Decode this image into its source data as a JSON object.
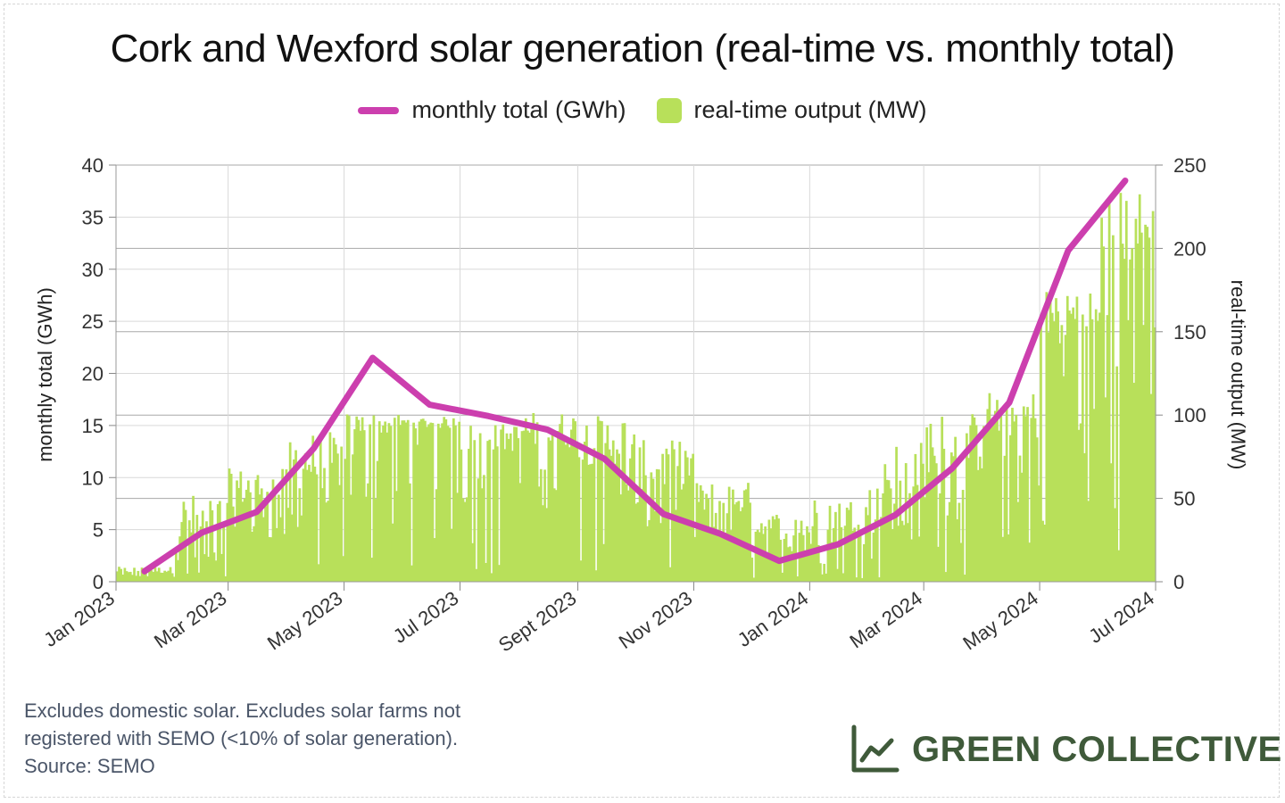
{
  "chart_data": {
    "type": "bar",
    "title": "Cork and Wexford solar generation (real-time vs. monthly total)",
    "ylabel_left": "monthly total (GWh)",
    "ylabel_right": "real-time output (MW)",
    "ylim_left": [
      0,
      40
    ],
    "ylim_right": [
      0,
      250
    ],
    "yticks_left": [
      "0",
      "5",
      "10",
      "15",
      "20",
      "25",
      "30",
      "35",
      "40"
    ],
    "yticks_right": [
      "0",
      "50",
      "100",
      "150",
      "200",
      "250"
    ],
    "xlim": [
      "2023-01-01",
      "2024-07-01"
    ],
    "xticks": [
      {
        "date": "2023-01-01",
        "label": "Jan 2023"
      },
      {
        "date": "2023-03-01",
        "label": "Mar 2023"
      },
      {
        "date": "2023-05-01",
        "label": "May 2023"
      },
      {
        "date": "2023-07-01",
        "label": "Jul 2023"
      },
      {
        "date": "2023-09-01",
        "label": "Sept 2023"
      },
      {
        "date": "2023-11-01",
        "label": "Nov 2023"
      },
      {
        "date": "2024-01-01",
        "label": "Jan 2024"
      },
      {
        "date": "2024-03-01",
        "label": "Mar 2024"
      },
      {
        "date": "2024-05-01",
        "label": "May 2024"
      },
      {
        "date": "2024-07-01",
        "label": "Jul 2024"
      }
    ],
    "grid": true,
    "legend_position": "top-center",
    "series": [
      {
        "name": "monthly total (GWh)",
        "type": "line",
        "axis": "left",
        "color": "#cc3fae",
        "points": [
          {
            "x": "2023-01-16",
            "y": 1.0
          },
          {
            "x": "2023-02-15",
            "y": 4.7
          },
          {
            "x": "2023-03-16",
            "y": 6.7
          },
          {
            "x": "2023-04-15",
            "y": 12.8
          },
          {
            "x": "2023-05-16",
            "y": 21.5
          },
          {
            "x": "2023-06-15",
            "y": 17.0
          },
          {
            "x": "2023-07-16",
            "y": 15.9
          },
          {
            "x": "2023-08-16",
            "y": 14.6
          },
          {
            "x": "2023-09-15",
            "y": 11.8
          },
          {
            "x": "2023-10-16",
            "y": 6.5
          },
          {
            "x": "2023-11-15",
            "y": 4.6
          },
          {
            "x": "2023-12-16",
            "y": 2.0
          },
          {
            "x": "2024-01-16",
            "y": 3.6
          },
          {
            "x": "2024-02-15",
            "y": 6.4
          },
          {
            "x": "2024-03-16",
            "y": 10.9
          },
          {
            "x": "2024-04-15",
            "y": 17.2
          },
          {
            "x": "2024-05-16",
            "y": 31.8
          },
          {
            "x": "2024-06-15",
            "y": 38.5
          }
        ]
      },
      {
        "name": "real-time output (MW)",
        "type": "bar",
        "axis": "right",
        "color": "#b8e05a",
        "resolution": "daily",
        "start": "2023-01-01",
        "monthly_profile": [
          {
            "month": "2023-01",
            "avg": 5,
            "max": 9
          },
          {
            "month": "2023-02",
            "avg": 20,
            "max": 53
          },
          {
            "month": "2023-03",
            "avg": 45,
            "max": 68
          },
          {
            "month": "2023-04",
            "avg": 55,
            "max": 90
          },
          {
            "month": "2023-05",
            "avg": 88,
            "max": 101
          },
          {
            "month": "2023-06",
            "avg": 92,
            "max": 99
          },
          {
            "month": "2023-07",
            "avg": 78,
            "max": 95
          },
          {
            "month": "2023-08",
            "avg": 80,
            "max": 102
          },
          {
            "month": "2023-09",
            "avg": 70,
            "max": 100
          },
          {
            "month": "2023-10",
            "avg": 55,
            "max": 85
          },
          {
            "month": "2023-11",
            "avg": 40,
            "max": 60
          },
          {
            "month": "2023-12",
            "avg": 25,
            "max": 42
          },
          {
            "month": "2024-01",
            "avg": 30,
            "max": 50
          },
          {
            "month": "2024-02",
            "avg": 45,
            "max": 85
          },
          {
            "month": "2024-03",
            "avg": 65,
            "max": 102
          },
          {
            "month": "2024-04",
            "avg": 85,
            "max": 115
          },
          {
            "month": "2024-05",
            "avg": 140,
            "max": 180
          },
          {
            "month": "2024-06",
            "avg": 190,
            "max": 235
          }
        ]
      }
    ]
  },
  "footnote": {
    "line1": "Excludes domestic solar. Excludes solar farms not",
    "line2": "registered with SEMO (<10% of solar generation).",
    "line3": "Source: SEMO"
  },
  "brand": {
    "name": "GREEN COLLECTIVE",
    "icon": "line-chart-icon",
    "color": "#3f5a3a"
  }
}
